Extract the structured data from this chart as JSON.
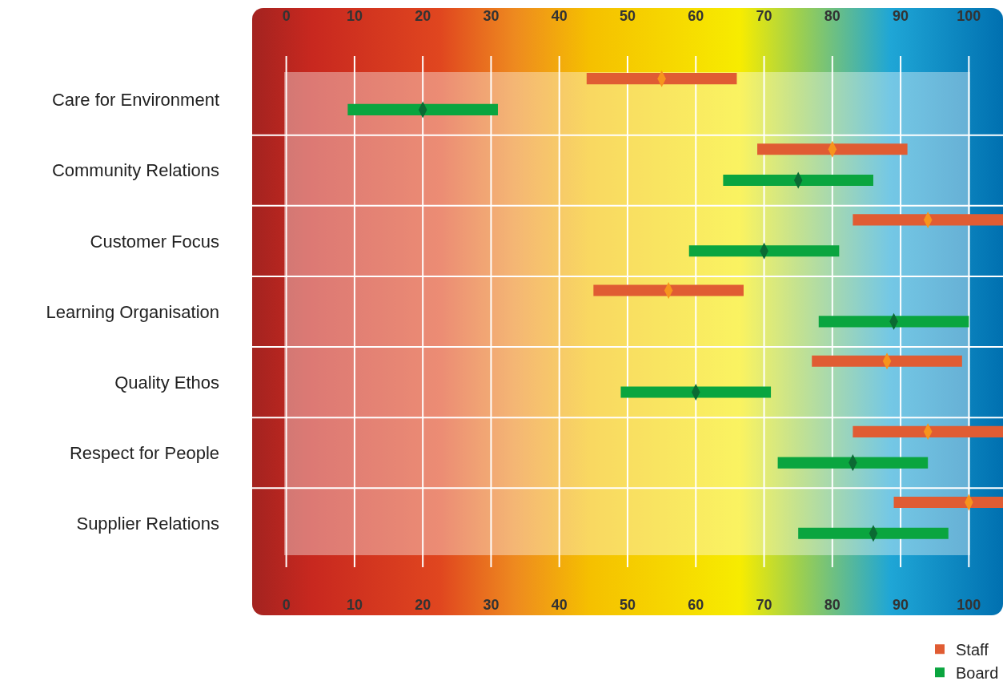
{
  "chart_data": {
    "type": "bar",
    "orientation": "horizontal",
    "categories": [
      "Care for Environment",
      "Community Relations",
      "Customer Focus",
      "Learning Organisation",
      "Quality Ethos",
      "Respect for People",
      "Supplier Relations"
    ],
    "series": [
      {
        "name": "Staff",
        "type": "bar",
        "color": "#e05c33",
        "base": [
          44,
          69,
          83,
          45,
          77,
          83,
          89
        ],
        "values": [
          22,
          22,
          22,
          22,
          22,
          22,
          16
        ]
      },
      {
        "name": "Board",
        "type": "bar",
        "color": "#0aa53f",
        "base": [
          9,
          64,
          59,
          78,
          49,
          72,
          75
        ],
        "values": [
          22,
          22,
          22,
          22,
          22,
          22,
          22
        ]
      },
      {
        "type": "scatter",
        "marker": "diamond",
        "color": "#f7941d",
        "values": [
          55,
          80,
          94,
          56,
          88,
          94,
          100
        ]
      },
      {
        "type": "scatter",
        "marker": "diamond",
        "color": "#0b6a33",
        "values": [
          20,
          75,
          70,
          89,
          60,
          83,
          86
        ]
      }
    ],
    "xlim": [
      -5,
      105
    ],
    "xticks": [
      0,
      10,
      20,
      30,
      40,
      50,
      60,
      70,
      80,
      90,
      100
    ],
    "x2lim": [
      -5,
      105
    ],
    "x2ticks": [
      0,
      10,
      20,
      30,
      40,
      50,
      60,
      70,
      80,
      90,
      100
    ],
    "grid": true,
    "legend": "bottom right"
  }
}
